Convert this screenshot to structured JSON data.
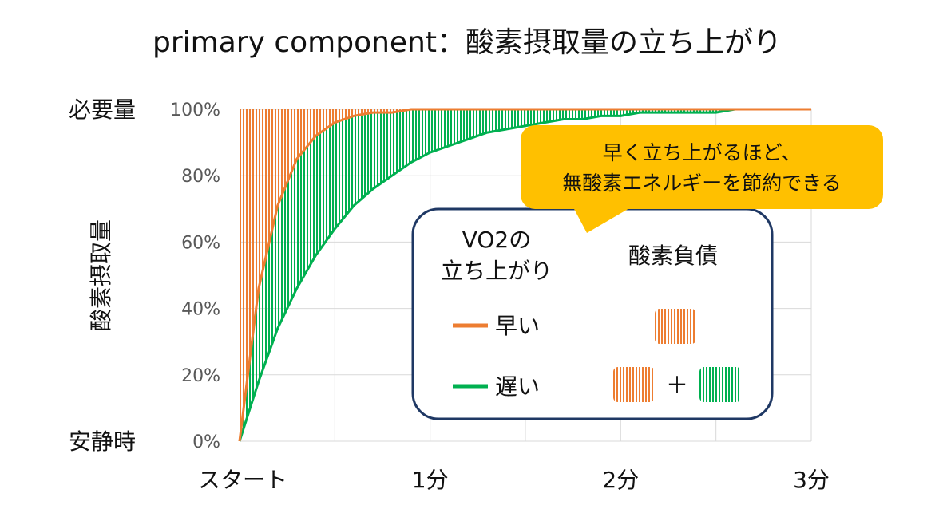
{
  "chart_data": {
    "type": "line",
    "title": "primary component：酸素摂取量の立ち上がり",
    "ylabel": "酸素摂取量",
    "x": [
      0,
      0.1,
      0.2,
      0.3,
      0.4,
      0.5,
      0.6,
      0.7,
      0.8,
      0.9,
      1.0,
      1.1,
      1.2,
      1.3,
      1.4,
      1.5,
      1.6,
      1.7,
      1.8,
      1.9,
      2.0,
      2.1,
      2.2,
      2.3,
      2.4,
      2.5,
      2.6,
      2.7,
      2.8,
      2.9,
      3.0
    ],
    "series": [
      {
        "name": "早い",
        "color": "#ed7d31",
        "values": [
          0,
          46,
          71,
          85,
          92,
          96,
          98,
          99,
          99,
          100,
          100,
          100,
          100,
          100,
          100,
          100,
          100,
          100,
          100,
          100,
          100,
          100,
          100,
          100,
          100,
          100,
          100,
          100,
          100,
          100,
          100
        ]
      },
      {
        "name": "遅い",
        "color": "#00b050",
        "values": [
          0,
          18,
          34,
          46,
          56,
          64,
          71,
          76,
          80,
          84,
          87,
          89,
          91,
          93,
          94,
          95,
          96,
          97,
          97,
          98,
          98,
          99,
          99,
          99,
          99,
          99,
          100,
          100,
          100,
          100,
          100
        ]
      }
    ],
    "xlim": [
      0,
      3
    ],
    "xticks": [
      {
        "value": 0,
        "label": "スタート"
      },
      {
        "value": 1,
        "label": "1分"
      },
      {
        "value": 2,
        "label": "2分"
      },
      {
        "value": 3,
        "label": "3分"
      }
    ],
    "x_gridlines": [
      0.5,
      1,
      1.5,
      2,
      2.5,
      3
    ],
    "ylim": [
      0,
      100
    ],
    "yticks": [
      {
        "value": 0,
        "label": "0%"
      },
      {
        "value": 20,
        "label": "20%"
      },
      {
        "value": 40,
        "label": "40%"
      },
      {
        "value": 60,
        "label": "60%"
      },
      {
        "value": 80,
        "label": "80%"
      },
      {
        "value": 100,
        "label": "100%"
      }
    ],
    "y_annotations": [
      {
        "value": 100,
        "label": "必要量"
      },
      {
        "value": 0,
        "label": "安静時"
      }
    ],
    "grid": true,
    "callout": [
      "早く立ち上がるほど、",
      "無酸素エネルギーを節約できる"
    ],
    "legend": {
      "title": [
        "VO2の",
        "立ち上がり"
      ],
      "debt_title": "酸素負債",
      "plus": "＋"
    }
  }
}
